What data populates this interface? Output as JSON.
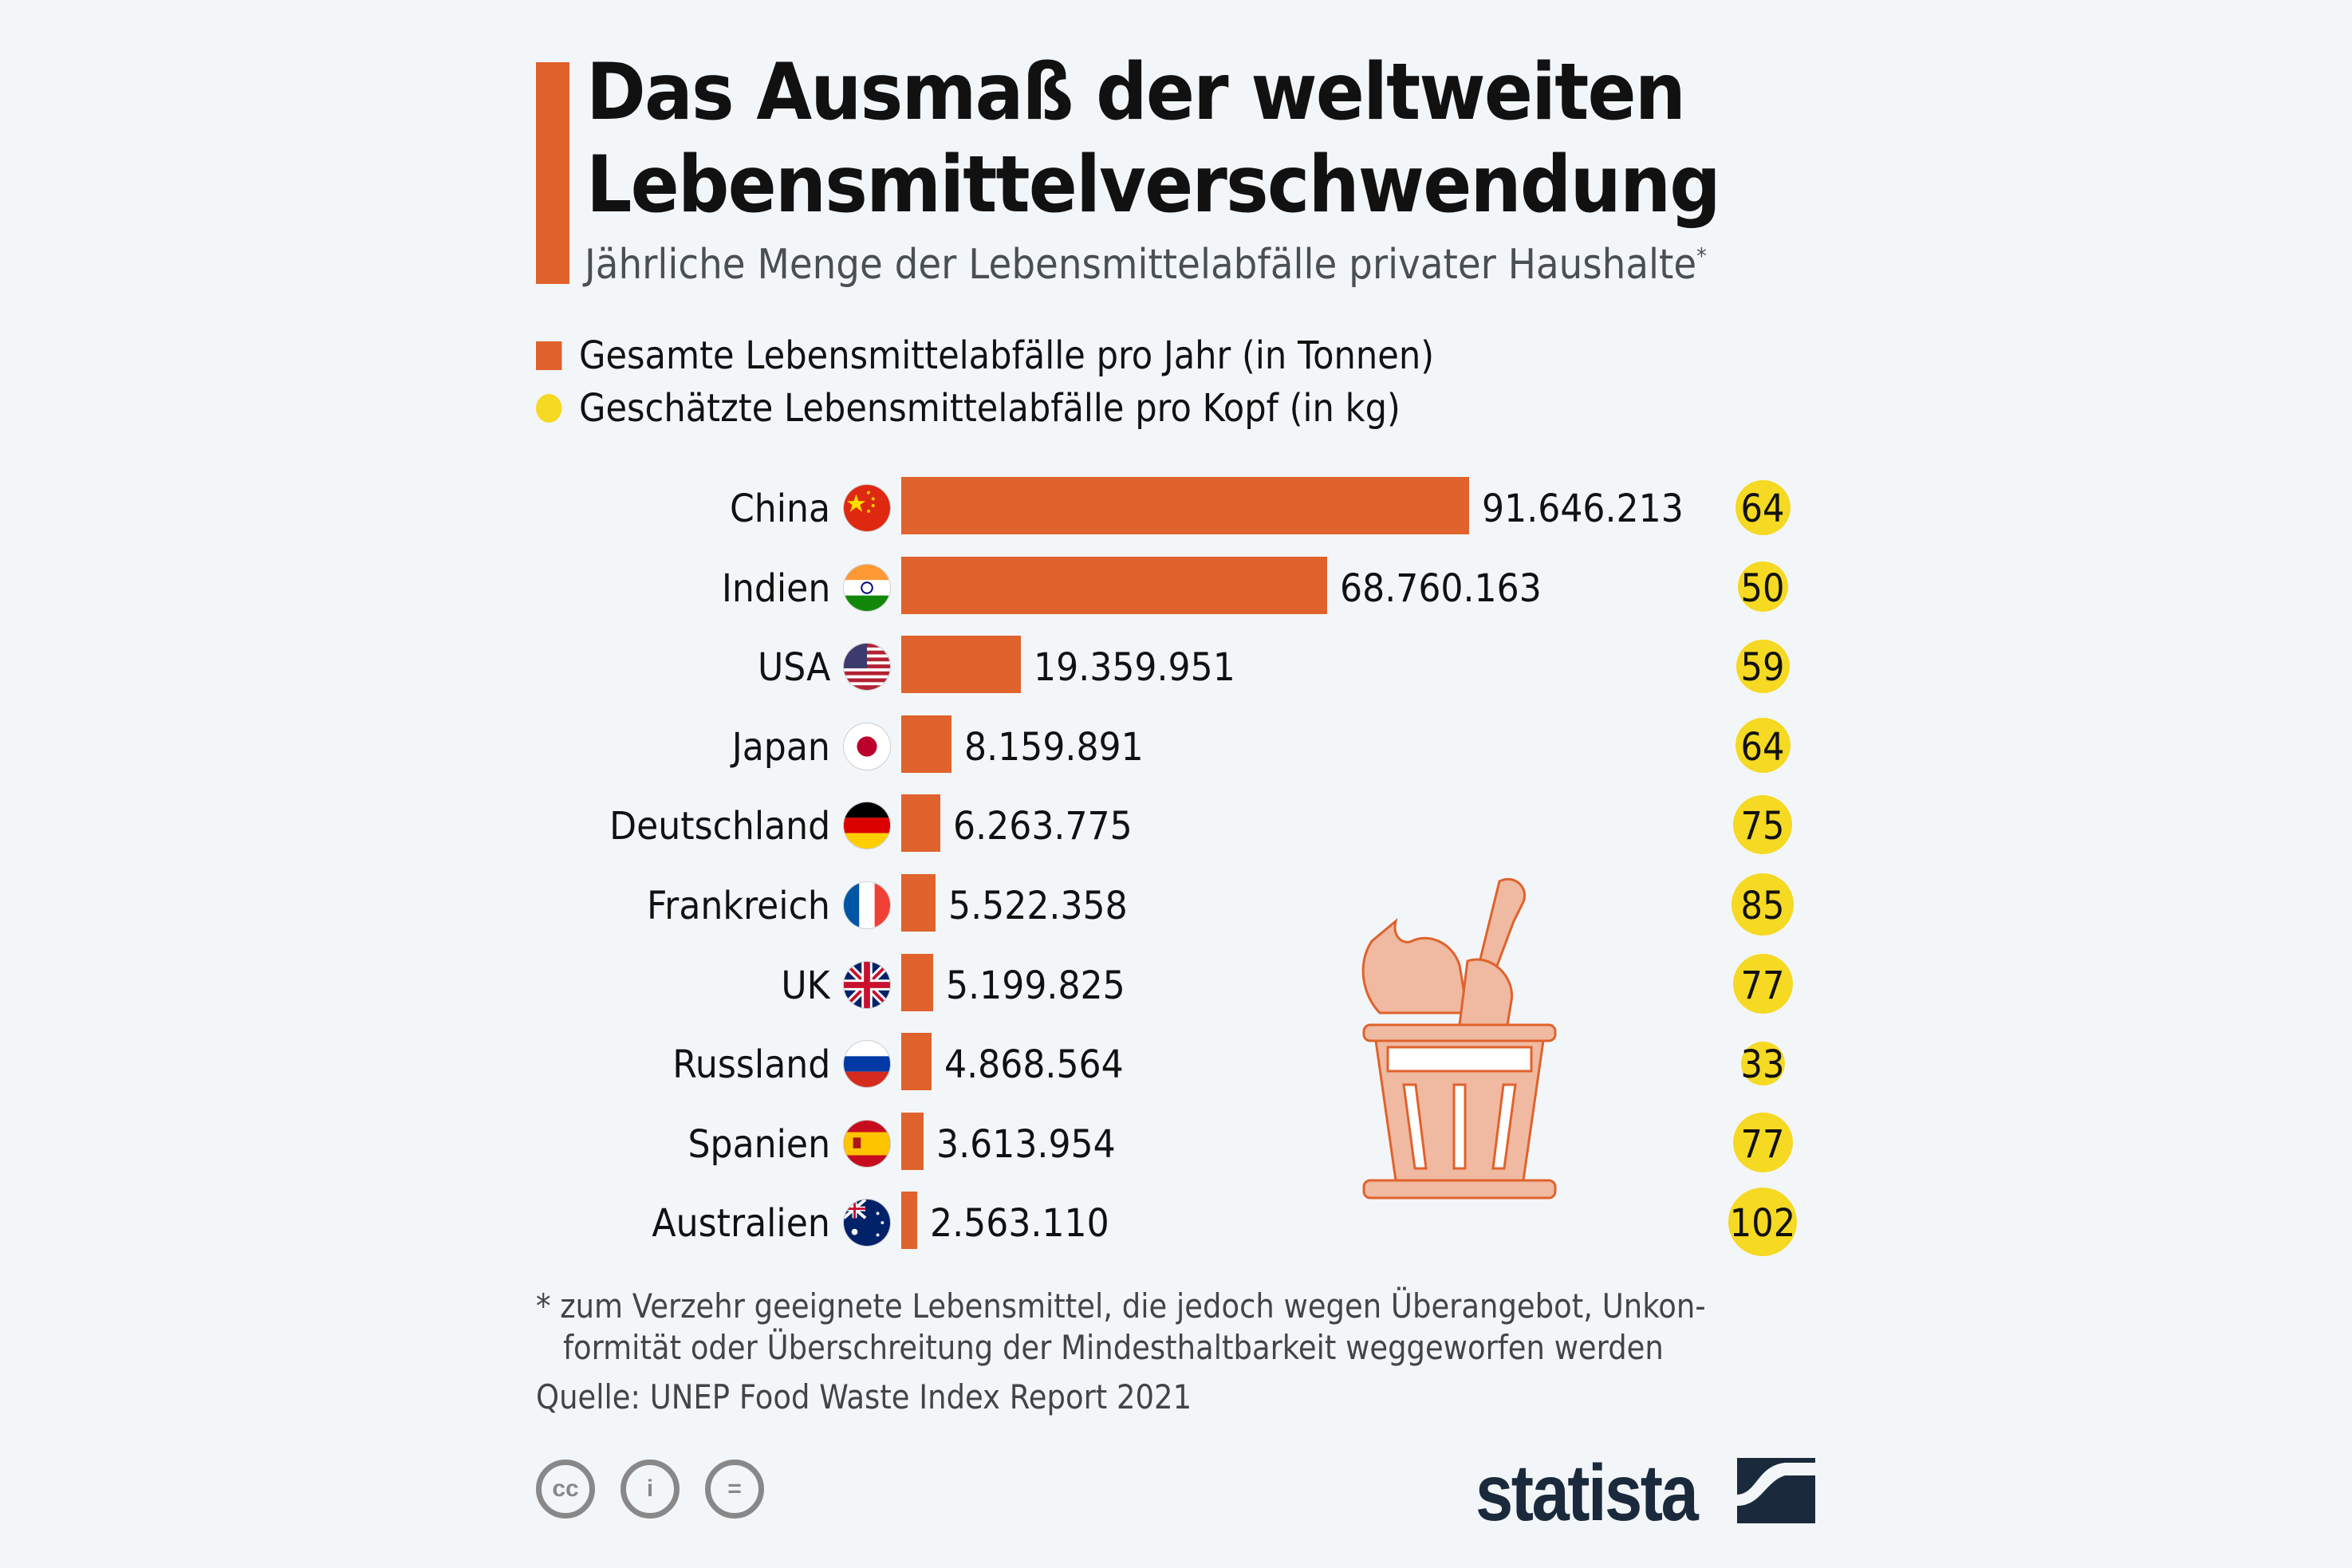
{
  "header": {
    "title_line1": "Das Ausmaß der weltweiten",
    "title_line2": "Lebensmittelverschwendung",
    "subtitle": "Jährliche Menge der Lebensmittelabfälle privater Haushalte",
    "subtitle_mark": "*"
  },
  "legend": {
    "total": "Gesamte Lebensmittelabfälle pro Jahr (in Tonnen)",
    "per_capita": "Geschätzte Lebensmittelabfälle pro Kopf (in kg)"
  },
  "colors": {
    "bar": "#e0622c",
    "bubble": "#f5d922",
    "accent": "#e0622c",
    "background": "#f3f6f9"
  },
  "rows": [
    {
      "country": "China",
      "total": "91.646.213",
      "per_capita": "64"
    },
    {
      "country": "Indien",
      "total": "68.760.163",
      "per_capita": "50"
    },
    {
      "country": "USA",
      "total": "19.359.951",
      "per_capita": "59"
    },
    {
      "country": "Japan",
      "total": "8.159.891",
      "per_capita": "64"
    },
    {
      "country": "Deutschland",
      "total": "6.263.775",
      "per_capita": "75"
    },
    {
      "country": "Frankreich",
      "total": "5.522.358",
      "per_capita": "85"
    },
    {
      "country": "UK",
      "total": "5.199.825",
      "per_capita": "77"
    },
    {
      "country": "Russland",
      "total": "4.868.564",
      "per_capita": "33"
    },
    {
      "country": "Spanien",
      "total": "3.613.954",
      "per_capita": "77"
    },
    {
      "country": "Australien",
      "total": "2.563.110",
      "per_capita": "102"
    }
  ],
  "footer": {
    "note_line1": "* zum Verzehr geeignete Lebensmittel, die jedoch wegen Überangebot, Unkon-",
    "note_line2": "formität oder Überschreitung der Mindesthaltbarkeit weggeworfen werden",
    "source": "Quelle: UNEP Food Waste Index Report 2021",
    "license_icons": [
      "cc-icon",
      "attribution-icon",
      "no-derivatives-icon"
    ],
    "brand": "statista"
  },
  "chart_data": {
    "type": "bar",
    "orientation": "horizontal",
    "title": "Das Ausmaß der weltweiten Lebensmittelverschwendung",
    "subtitle": "Jährliche Menge der Lebensmittelabfälle privater Haushalte*",
    "categories": [
      "China",
      "Indien",
      "USA",
      "Japan",
      "Deutschland",
      "Frankreich",
      "UK",
      "Russland",
      "Spanien",
      "Australien"
    ],
    "series": [
      {
        "name": "Gesamte Lebensmittelabfälle pro Jahr (in Tonnen)",
        "type": "bar",
        "color": "#e0622c",
        "values": [
          91646213,
          68760163,
          19359951,
          8159891,
          6263775,
          5522358,
          5199825,
          4868564,
          3613954,
          2563110
        ]
      },
      {
        "name": "Geschätzte Lebensmittelabfälle pro Kopf (in kg)",
        "type": "bubble",
        "color": "#f5d922",
        "values": [
          64,
          50,
          59,
          64,
          75,
          85,
          77,
          33,
          77,
          102
        ]
      }
    ],
    "legend_position": "top",
    "grid": false,
    "xlabel": "",
    "ylabel": "",
    "annotations": [
      "* zum Verzehr geeignete Lebensmittel, die jedoch wegen Überangebot, Unkonformität oder Überschreitung der Mindesthaltbarkeit weggeworfen werden"
    ],
    "source": "Quelle: UNEP Food Waste Index Report 2021"
  }
}
